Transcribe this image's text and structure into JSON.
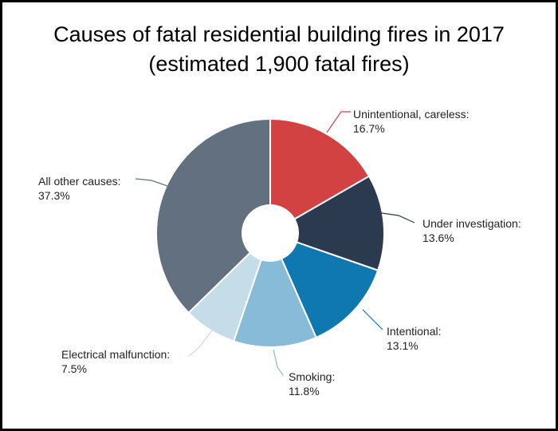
{
  "chart_data": {
    "type": "pie",
    "title_lines": [
      "Causes of fatal residential building fires in 2017",
      "(estimated 1,900 fatal fires)"
    ],
    "slices": [
      {
        "label": "Unintentional, careless:",
        "value_text": "16.7%",
        "value": 16.7,
        "color": "#d24243"
      },
      {
        "label": "Under investigation:",
        "value_text": "13.6%",
        "value": 13.6,
        "color": "#2c3a4f"
      },
      {
        "label": "Intentional:",
        "value_text": "13.1%",
        "value": 13.1,
        "color": "#0f78b0"
      },
      {
        "label": "Smoking:",
        "value_text": "11.8%",
        "value": 11.8,
        "color": "#87bbd8"
      },
      {
        "label": "Electrical malfunction:",
        "value_text": "7.5%",
        "value": 7.5,
        "color": "#c4dde9"
      },
      {
        "label": "All other causes:",
        "value_text": "37.3%",
        "value": 37.3,
        "color": "#627080"
      }
    ]
  }
}
